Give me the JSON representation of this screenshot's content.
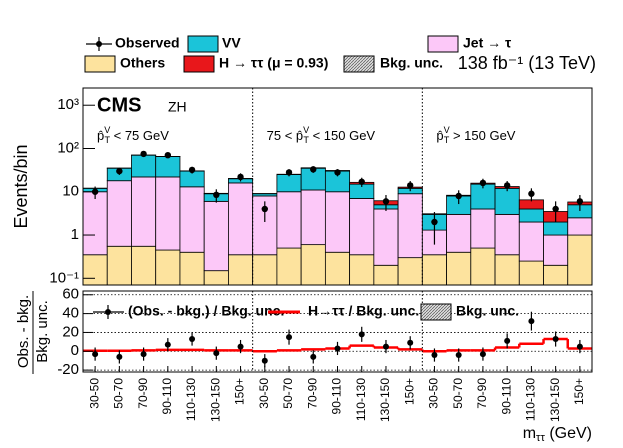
{
  "chart_data": [
    {
      "type": "stacked-bar",
      "y_label": "Events/bin",
      "cms": "CMS",
      "channel": "ZH",
      "lumi": "138 fb⁻¹ (13 TeV)",
      "log_y": true,
      "ylim": [
        0.07,
        2500
      ],
      "yticks": [
        {
          "value": 0.1,
          "label": "10⁻¹"
        },
        1,
        10,
        {
          "value": 100,
          "label": "10²"
        },
        {
          "value": 1000,
          "label": "10³"
        }
      ],
      "regions": [
        [
          {
            "text": "p̂"
          },
          {
            "sup": "V"
          },
          {
            "sub": "T"
          },
          {
            "text": " < 75 GeV"
          }
        ],
        [
          {
            "text": "75 < p̂"
          },
          {
            "sup": "V"
          },
          {
            "sub": "T"
          },
          {
            "text": " < 150 GeV"
          }
        ],
        [
          {
            "text": "p̂"
          },
          {
            "sup": "V"
          },
          {
            "sub": "T"
          },
          {
            "text": " > 150 GeV"
          }
        ]
      ],
      "series": [
        {
          "name": "Others",
          "color": "#fde39e",
          "values": [
            0.35,
            0.55,
            0.55,
            0.45,
            0.4,
            0.15,
            0.35,
            0.35,
            0.5,
            0.6,
            0.4,
            0.35,
            0.2,
            0.3,
            0.35,
            0.4,
            0.5,
            0.35,
            0.25,
            0.2,
            1.0
          ]
        },
        {
          "name": "Jet → τ",
          "color": "#fcc8f8",
          "values": [
            9.65,
            17.45,
            21.45,
            21.55,
            12.6,
            5.85,
            15.65,
            7.65,
            9.5,
            10.4,
            9.6,
            6.65,
            3.8,
            8.7,
            0.95,
            2.6,
            3.5,
            2.65,
            1.75,
            0.8,
            1.5
          ]
        },
        {
          "name": "VV",
          "color": "#1bc4d9",
          "values": [
            2,
            17,
            48,
            43,
            17,
            3,
            4,
            1,
            15,
            24,
            20,
            8,
            1,
            3,
            1.7,
            5,
            11,
            9,
            2,
            1,
            2.5
          ]
        },
        {
          "name": "H → ττ (μ = 0.93)",
          "color": "#e8171b",
          "values": [
            0.1,
            0.3,
            0.6,
            0.6,
            0.4,
            0.2,
            0.3,
            0.1,
            0.4,
            0.8,
            1,
            1.5,
            1.2,
            0.8,
            0.1,
            0.3,
            0.8,
            1.2,
            2.5,
            1.5,
            0.8
          ]
        }
      ],
      "observed": {
        "name": "Observed",
        "color": "#000000",
        "values": [
          10,
          30,
          75,
          70,
          32,
          8.5,
          22,
          4,
          28,
          33,
          28,
          17,
          6,
          14,
          2,
          8,
          16,
          14,
          9,
          4,
          6
        ],
        "errors": [
          3.2,
          5.5,
          8.7,
          8.4,
          5.7,
          2.9,
          4.7,
          2,
          5.3,
          5.7,
          5.3,
          4.1,
          2.4,
          3.7,
          1.4,
          2.8,
          4,
          3.7,
          3,
          2,
          2.4
        ]
      },
      "bkg_unc_label": "Bkg. unc."
    },
    {
      "type": "ratio",
      "y_label_num": "Obs. - bkg.",
      "y_label_den": "Bkg. unc.",
      "x_label": [
        {
          "text": "m"
        },
        {
          "sub": "ττ"
        },
        {
          "text": " (GeV)"
        }
      ],
      "categories": [
        "30-50",
        "50-70",
        "70-90",
        "90-110",
        "110-130",
        "130-150",
        "150+",
        "30-50",
        "50-70",
        "70-90",
        "90-110",
        "110-130",
        "130-150",
        "150+",
        "30-50",
        "50-70",
        "70-90",
        "90-110",
        "110-130",
        "130-150",
        "150+"
      ],
      "ylim": [
        -22,
        64
      ],
      "yticks": [
        -20,
        0,
        20,
        40,
        60
      ],
      "grid": true,
      "series": [
        {
          "name": "(Obs. - bkg.) / Bkg. unc.",
          "color": "#000000",
          "values": [
            -3,
            -6,
            -3,
            7,
            13,
            -2,
            5,
            -10,
            15,
            -6,
            3,
            18,
            5,
            9,
            -4,
            -4,
            -3,
            11,
            32,
            13,
            5
          ],
          "errors": [
            7,
            7,
            7,
            7,
            7,
            7,
            7,
            7,
            8,
            7,
            7,
            8,
            7,
            7,
            7,
            7,
            7,
            8,
            10,
            8,
            7
          ]
        },
        {
          "name": "H→ττ / Bkg. unc.",
          "color": "#ff0000",
          "values": [
            0.5,
            0.5,
            1,
            1.5,
            1.5,
            1,
            1,
            0,
            1,
            2,
            3,
            6,
            4,
            2,
            0,
            1,
            1,
            4,
            8,
            13,
            3
          ]
        }
      ],
      "bkg_unc_label": "Bkg. unc."
    }
  ]
}
